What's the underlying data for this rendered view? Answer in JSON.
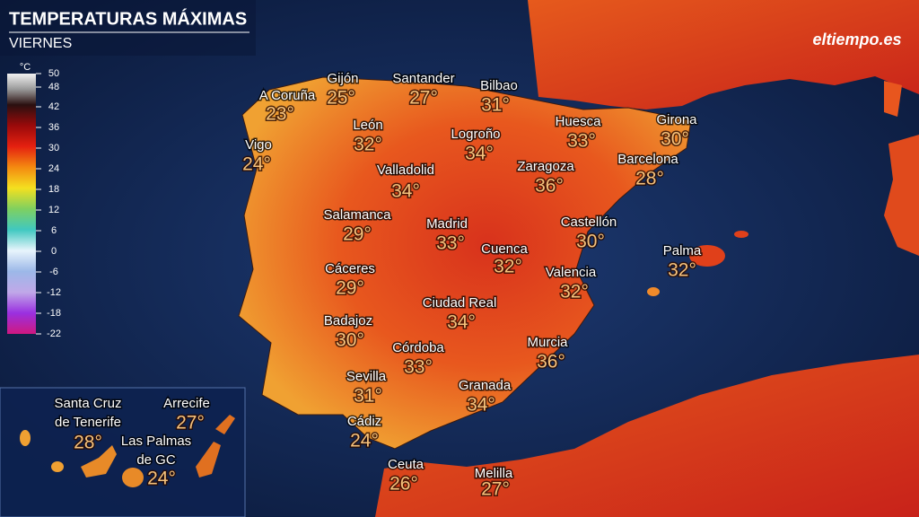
{
  "header": {
    "title": "TEMPERATURAS MÁXIMAS",
    "subtitle": "VIERNES",
    "logo": "eltiempo.es"
  },
  "legend": {
    "unit": "°C",
    "labels": [
      50,
      48,
      42,
      36,
      30,
      24,
      18,
      12,
      6,
      0,
      -6,
      -12,
      -18,
      -22
    ]
  },
  "cities": [
    {
      "lines": [
        "A Coruña"
      ],
      "temp": "23°"
    },
    {
      "lines": [
        "Gijón"
      ],
      "temp": "25°"
    },
    {
      "lines": [
        "Santander"
      ],
      "temp": "27°"
    },
    {
      "lines": [
        "Bilbao"
      ],
      "temp": "31°"
    },
    {
      "lines": [
        "León"
      ],
      "temp": "32°"
    },
    {
      "lines": [
        "Vigo"
      ],
      "temp": "24°"
    },
    {
      "lines": [
        "Logroño"
      ],
      "temp": "34°"
    },
    {
      "lines": [
        "Huesca"
      ],
      "temp": "33°"
    },
    {
      "lines": [
        "Girona"
      ],
      "temp": "30°"
    },
    {
      "lines": [
        "Barcelona"
      ],
      "temp": "28°"
    },
    {
      "lines": [
        "Zaragoza"
      ],
      "temp": "36°"
    },
    {
      "lines": [
        "Valladolid"
      ],
      "temp": "34°"
    },
    {
      "lines": [
        "Salamanca"
      ],
      "temp": "29°"
    },
    {
      "lines": [
        "Madrid"
      ],
      "temp": "33°"
    },
    {
      "lines": [
        "Castellón"
      ],
      "temp": "30°"
    },
    {
      "lines": [
        "Palma"
      ],
      "temp": "32°"
    },
    {
      "lines": [
        "Cuenca"
      ],
      "temp": "32°"
    },
    {
      "lines": [
        "Cáceres"
      ],
      "temp": "29°"
    },
    {
      "lines": [
        "Valencia"
      ],
      "temp": "32°"
    },
    {
      "lines": [
        "Ciudad Real"
      ],
      "temp": "34°"
    },
    {
      "lines": [
        "Badajoz"
      ],
      "temp": "30°"
    },
    {
      "lines": [
        "Córdoba"
      ],
      "temp": "33°"
    },
    {
      "lines": [
        "Murcia"
      ],
      "temp": "36°"
    },
    {
      "lines": [
        "Sevilla"
      ],
      "temp": "31°"
    },
    {
      "lines": [
        "Granada"
      ],
      "temp": "34°"
    },
    {
      "lines": [
        "Cádiz"
      ],
      "temp": "24°"
    },
    {
      "lines": [
        "Ceuta"
      ],
      "temp": "26°"
    },
    {
      "lines": [
        "Melilla"
      ],
      "temp": "27°"
    },
    {
      "lines": [
        "Santa Cruz",
        "de Tenerife"
      ],
      "temp": "28°"
    },
    {
      "lines": [
        "Arrecife"
      ],
      "temp": "27°"
    },
    {
      "lines": [
        "Las Palmas",
        "de GC"
      ],
      "temp": "24°"
    }
  ]
}
